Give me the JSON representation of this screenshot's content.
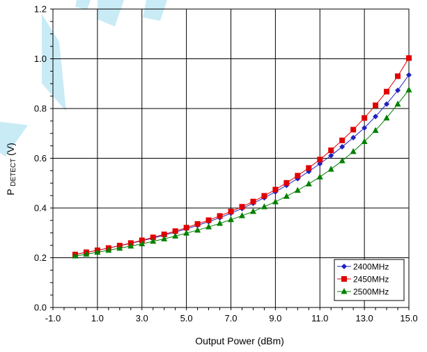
{
  "chart_data": {
    "type": "line",
    "title": "",
    "xlabel": "Output Power (dBm)",
    "ylabel_main": "P",
    "ylabel_sub": "DETECT",
    "ylabel_tail": " (V)",
    "xlim": [
      -1.0,
      15.0
    ],
    "ylim": [
      0.0,
      1.2
    ],
    "x_ticks": [
      "-1.0",
      "1.0",
      "3.0",
      "5.0",
      "7.0",
      "9.0",
      "11.0",
      "13.0",
      "15.0"
    ],
    "x_tick_values": [
      -1,
      1,
      3,
      5,
      7,
      9,
      11,
      13,
      15
    ],
    "x_minor_step": 0.5,
    "y_ticks": [
      "0.0",
      "0.2",
      "0.4",
      "0.6",
      "0.8",
      "1.0",
      "1.2"
    ],
    "y_tick_values": [
      0,
      0.2,
      0.4,
      0.6,
      0.8,
      1.0,
      1.2
    ],
    "y_minor_step": 0.05,
    "grid": true,
    "legend_position": "bottom-right",
    "x": [
      0.0,
      0.5,
      1.0,
      1.5,
      2.0,
      2.5,
      3.0,
      3.5,
      4.0,
      4.5,
      5.0,
      5.5,
      6.0,
      6.5,
      7.0,
      7.5,
      8.0,
      8.5,
      9.0,
      9.5,
      10.0,
      10.5,
      11.0,
      11.5,
      12.0,
      12.5,
      13.0,
      13.5,
      14.0,
      14.5,
      15.0
    ],
    "series": [
      {
        "name": "2400MHz",
        "color": "#2020c0",
        "marker": "diamond",
        "values": [
          0.213,
          0.222,
          0.23,
          0.239,
          0.248,
          0.258,
          0.268,
          0.279,
          0.291,
          0.303,
          0.316,
          0.33,
          0.345,
          0.361,
          0.379,
          0.398,
          0.419,
          0.441,
          0.465,
          0.491,
          0.518,
          0.547,
          0.578,
          0.611,
          0.646,
          0.683,
          0.722,
          0.768,
          0.818,
          0.873,
          0.935
        ]
      },
      {
        "name": "2450MHz",
        "color": "#e00000",
        "marker": "square",
        "values": [
          0.213,
          0.222,
          0.23,
          0.239,
          0.249,
          0.259,
          0.27,
          0.282,
          0.294,
          0.307,
          0.321,
          0.336,
          0.351,
          0.368,
          0.386,
          0.405,
          0.426,
          0.449,
          0.474,
          0.501,
          0.53,
          0.561,
          0.595,
          0.632,
          0.672,
          0.715,
          0.762,
          0.813,
          0.868,
          0.93,
          1.003
        ]
      },
      {
        "name": "2500MHz",
        "color": "#008000",
        "marker": "triangle",
        "values": [
          0.207,
          0.214,
          0.222,
          0.23,
          0.238,
          0.247,
          0.256,
          0.266,
          0.276,
          0.287,
          0.299,
          0.311,
          0.324,
          0.338,
          0.353,
          0.369,
          0.386,
          0.405,
          0.425,
          0.447,
          0.471,
          0.497,
          0.525,
          0.556,
          0.59,
          0.627,
          0.667,
          0.712,
          0.762,
          0.818,
          0.875
        ]
      }
    ]
  }
}
